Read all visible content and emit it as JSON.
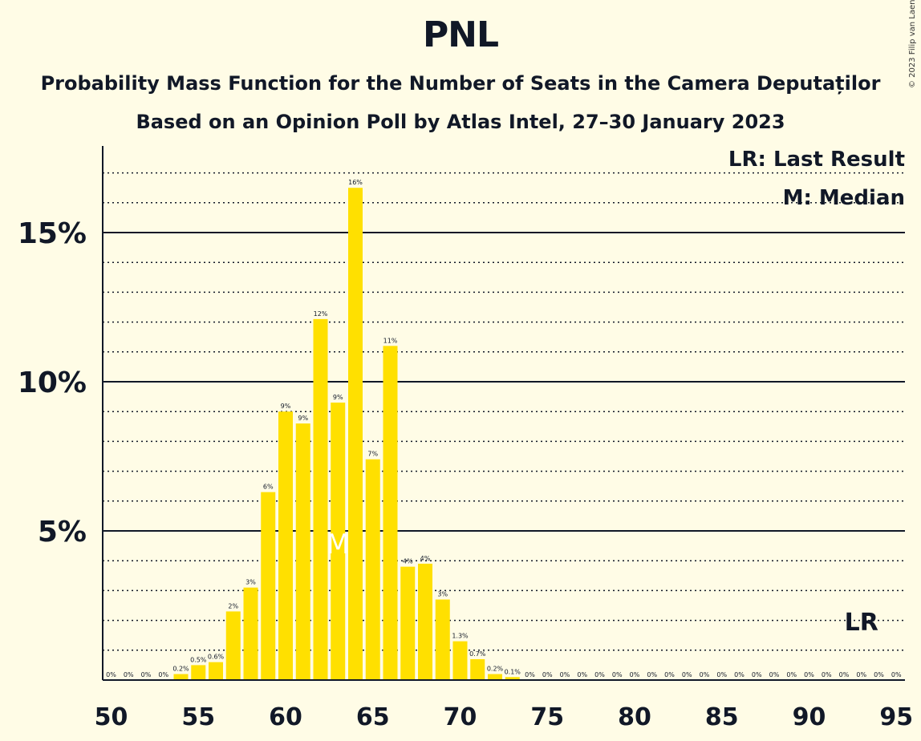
{
  "chart_data": {
    "type": "bar",
    "title": "PNL",
    "subtitle": "Probability Mass Function for the Number of Seats in the Camera Deputaților",
    "subtitle2": "Based on an Opinion Poll by Atlas Intel, 27–30 January 2023",
    "copyright": "© 2023 Filip van Laenen",
    "legend": {
      "lr": "LR: Last Result",
      "median": "M: Median",
      "placement": "top-right"
    },
    "bar_color": "#ffe000",
    "x": [
      50,
      51,
      52,
      53,
      54,
      55,
      56,
      57,
      58,
      59,
      60,
      61,
      62,
      63,
      64,
      65,
      66,
      67,
      68,
      69,
      70,
      71,
      72,
      73,
      74,
      75,
      76,
      77,
      78,
      79,
      80,
      81,
      82,
      83,
      84,
      85,
      86,
      87,
      88,
      89,
      90,
      91,
      92,
      93,
      94,
      95
    ],
    "values": [
      0,
      0,
      0,
      0,
      0.2,
      0.5,
      0.6,
      2.3,
      3.1,
      6.3,
      9.0,
      8.6,
      12.1,
      9.3,
      16.5,
      7.4,
      11.2,
      3.8,
      3.9,
      2.7,
      1.3,
      0.7,
      0.2,
      0.1,
      0,
      0,
      0,
      0,
      0,
      0,
      0,
      0,
      0,
      0,
      0,
      0,
      0,
      0,
      0,
      0,
      0,
      0,
      0,
      0,
      0,
      0
    ],
    "labels": [
      "0%",
      "0%",
      "0%",
      "0%",
      "0.2%",
      "0.5%",
      "0.6%",
      "2%",
      "3%",
      "6%",
      "9%",
      "9%",
      "12%",
      "9%",
      "16%",
      "7%",
      "11%",
      "4%",
      "4%",
      "3%",
      "1.3%",
      "0.7%",
      "0.2%",
      "0.1%",
      "0%",
      "0%",
      "0%",
      "0%",
      "0%",
      "0%",
      "0%",
      "0%",
      "0%",
      "0%",
      "0%",
      "0%",
      "0%",
      "0%",
      "0%",
      "0%",
      "0%",
      "0%",
      "0%",
      "0%",
      "0%",
      "0%"
    ],
    "xticks": [
      50,
      55,
      60,
      65,
      70,
      75,
      80,
      85,
      90,
      95
    ],
    "yticks": [
      5,
      10,
      15
    ],
    "ytick_labels": [
      "5%",
      "10%",
      "15%"
    ],
    "ylim": [
      0,
      18
    ],
    "grid": "dotted every 1%, solid every 5%",
    "median": 63,
    "median_marker": "M",
    "last_result": 93,
    "last_result_marker": "LR"
  }
}
